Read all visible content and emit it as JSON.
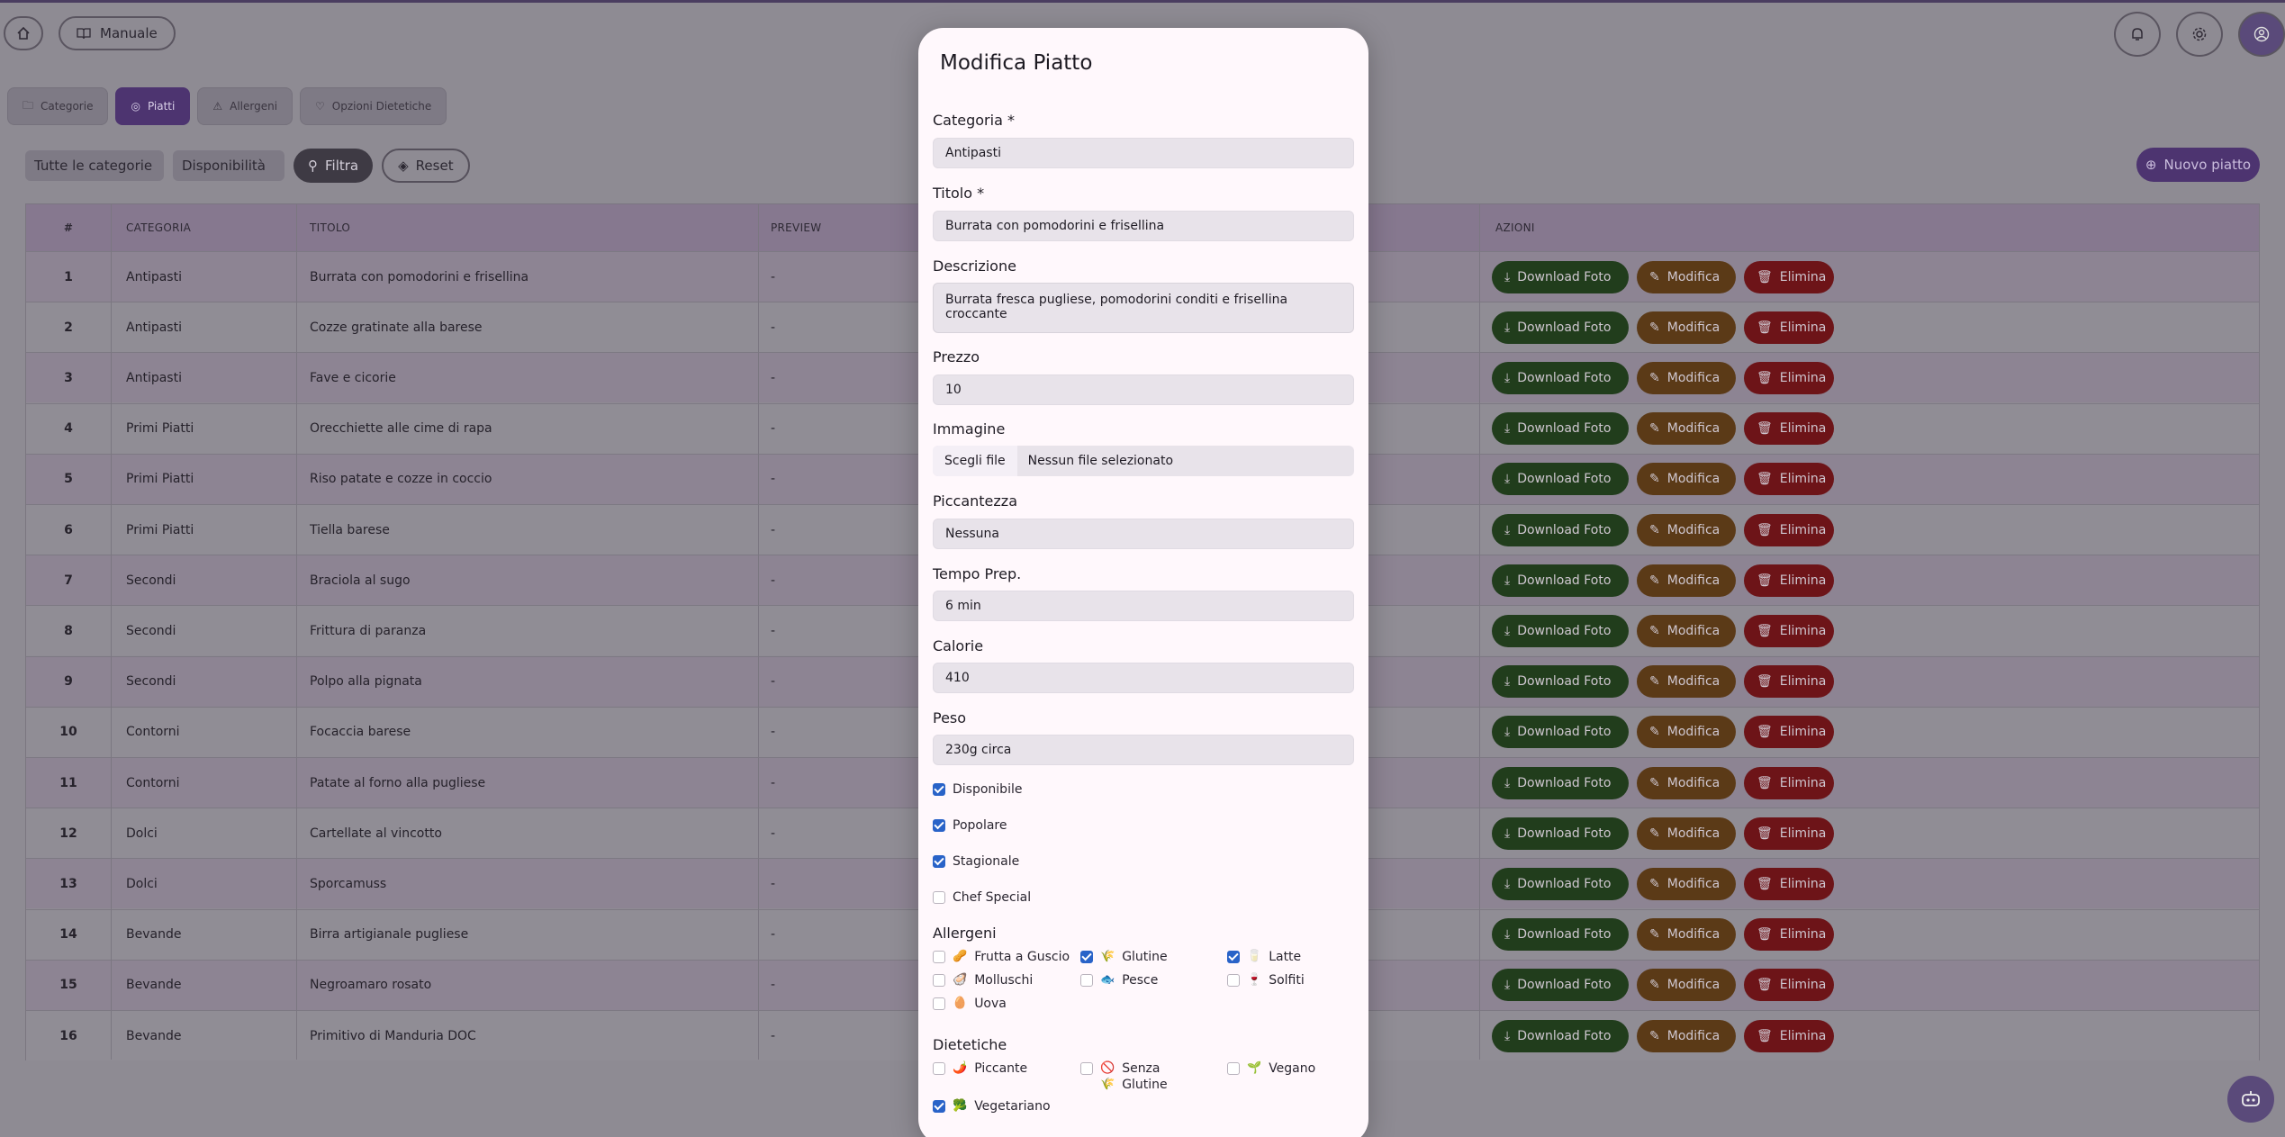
{
  "header": {
    "manual_label": "Manuale"
  },
  "tabs": [
    {
      "label": "Categorie",
      "icon": "folder-icon"
    },
    {
      "label": "Piatti",
      "icon": "dish-icon"
    },
    {
      "label": "Allergeni",
      "icon": "warning-icon"
    },
    {
      "label": "Opzioni Dietetiche",
      "icon": "diet-icon"
    }
  ],
  "filters": {
    "category": "Tutte le categorie",
    "availability": "Disponibilità",
    "filter_label": "Filtra",
    "reset_label": "Reset"
  },
  "new_dish_label": "Nuovo piatto",
  "table": {
    "columns": {
      "num": "#",
      "category": "CATEGORIA",
      "title": "TITOLO",
      "preview": "PREVIEW",
      "actions": "AZIONI"
    },
    "actions": {
      "download": "Download Foto",
      "edit": "Modifica",
      "delete": "Elimina"
    },
    "rows": [
      {
        "n": "1",
        "cat": "Antipasti",
        "title": "Burrata con pomodorini e frisellina",
        "prev": "-"
      },
      {
        "n": "2",
        "cat": "Antipasti",
        "title": "Cozze gratinate alla barese",
        "prev": "-"
      },
      {
        "n": "3",
        "cat": "Antipasti",
        "title": "Fave e cicorie",
        "prev": "-"
      },
      {
        "n": "4",
        "cat": "Primi Piatti",
        "title": "Orecchiette alle cime di rapa",
        "prev": "-"
      },
      {
        "n": "5",
        "cat": "Primi Piatti",
        "title": "Riso patate e cozze in coccio",
        "prev": "-"
      },
      {
        "n": "6",
        "cat": "Primi Piatti",
        "title": "Tiella barese",
        "prev": "-"
      },
      {
        "n": "7",
        "cat": "Secondi",
        "title": "Braciola al sugo",
        "prev": "-"
      },
      {
        "n": "8",
        "cat": "Secondi",
        "title": "Frittura di paranza",
        "prev": "-"
      },
      {
        "n": "9",
        "cat": "Secondi",
        "title": "Polpo alla pignata",
        "prev": "-"
      },
      {
        "n": "10",
        "cat": "Contorni",
        "title": "Focaccia barese",
        "prev": "-"
      },
      {
        "n": "11",
        "cat": "Contorni",
        "title": "Patate al forno alla pugliese",
        "prev": "-"
      },
      {
        "n": "12",
        "cat": "Dolci",
        "title": "Cartellate al vincotto",
        "prev": "-"
      },
      {
        "n": "13",
        "cat": "Dolci",
        "title": "Sporcamuss",
        "prev": "-"
      },
      {
        "n": "14",
        "cat": "Bevande",
        "title": "Birra artigianale pugliese",
        "prev": "-"
      },
      {
        "n": "15",
        "cat": "Bevande",
        "title": "Negroamaro rosato",
        "prev": "-"
      },
      {
        "n": "16",
        "cat": "Bevande",
        "title": "Primitivo di Manduria DOC",
        "prev": "-"
      }
    ]
  },
  "modal": {
    "title": "Modifica Piatto",
    "category_label": "Categoria *",
    "category_value": "Antipasti",
    "title_label": "Titolo *",
    "title_value": "Burrata con pomodorini e frisellina",
    "desc_label": "Descrizione",
    "desc_value": "Burrata fresca pugliese, pomodorini conditi e frisellina croccante",
    "price_label": "Prezzo",
    "price_value": "10",
    "image_label": "Immagine",
    "choose_file": "Scegli file",
    "no_file": "Nessun file selezionato",
    "spicy_label": "Piccantezza",
    "spicy_value": "Nessuna",
    "prep_label": "Tempo Prep.",
    "prep_value": "6 min",
    "cal_label": "Calorie",
    "cal_value": "410",
    "weight_label": "Peso",
    "weight_value": "230g circa",
    "flags": [
      {
        "label": "Disponibile",
        "checked": true
      },
      {
        "label": "Popolare",
        "checked": true
      },
      {
        "label": "Stagionale",
        "checked": true
      },
      {
        "label": "Chef Special",
        "checked": false
      }
    ],
    "allergens_label": "Allergeni",
    "allergens": [
      {
        "label": "Frutta a Guscio",
        "emoji": "🥜",
        "checked": false
      },
      {
        "label": "Glutine",
        "emoji": "🌾",
        "checked": true
      },
      {
        "label": "Latte",
        "emoji": "🥛",
        "checked": true
      },
      {
        "label": "Molluschi",
        "emoji": "🦪",
        "checked": false
      },
      {
        "label": "Pesce",
        "emoji": "🐟",
        "checked": false
      },
      {
        "label": "Solfiti",
        "emoji": "🍷",
        "checked": false
      },
      {
        "label": "Uova",
        "emoji": "🥚",
        "checked": false
      }
    ],
    "diet_label": "Dietetiche",
    "diet": [
      {
        "label": "Piccante",
        "emoji": "🌶️",
        "checked": false
      },
      {
        "label": "Senza Glutine",
        "emoji": "🚫🌾",
        "checked": false
      },
      {
        "label": "Vegano",
        "emoji": "🌱",
        "checked": false
      },
      {
        "label": "Vegetariano",
        "emoji": "🥦",
        "checked": true
      }
    ]
  }
}
